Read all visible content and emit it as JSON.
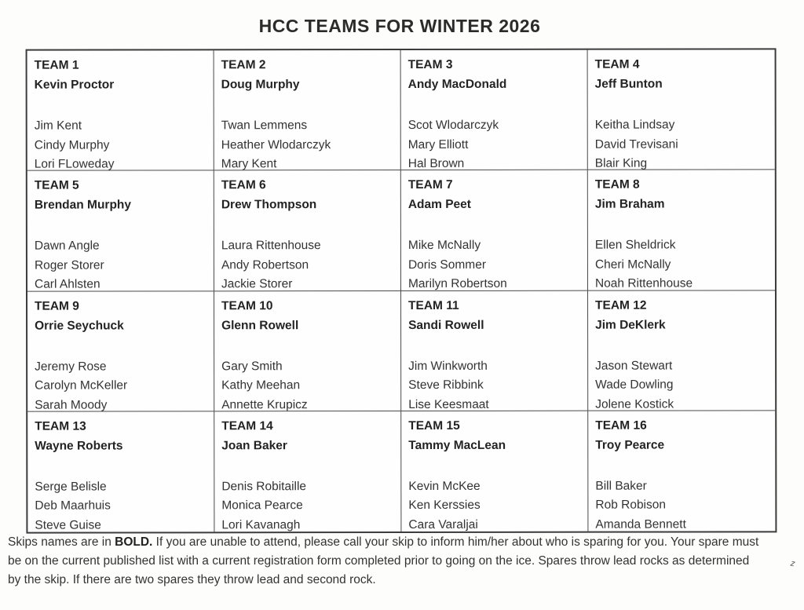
{
  "page": {
    "title": "HCC TEAMS FOR WINTER 2026"
  },
  "teams": [
    {
      "name": "TEAM 1",
      "skip": "Kevin Proctor",
      "members": [
        "Jim Kent",
        "Cindy Murphy",
        "Lori FLoweday"
      ]
    },
    {
      "name": "TEAM 2",
      "skip": "Doug Murphy",
      "members": [
        "Twan Lemmens",
        "Heather Wlodarczyk",
        "Mary Kent"
      ]
    },
    {
      "name": "TEAM 3",
      "skip": "Andy MacDonald",
      "members": [
        "Scot Wlodarczyk",
        "Mary Elliott",
        "Hal Brown"
      ]
    },
    {
      "name": "TEAM 4",
      "skip": "Jeff Bunton",
      "members": [
        "Keitha Lindsay",
        "David Trevisani",
        "Blair King"
      ]
    },
    {
      "name": "TEAM 5",
      "skip": "Brendan Murphy",
      "members": [
        "Dawn Angle",
        "Roger Storer",
        "Carl Ahlsten"
      ]
    },
    {
      "name": "TEAM 6",
      "skip": "Drew Thompson",
      "members": [
        "Laura Rittenhouse",
        "Andy Robertson",
        "Jackie Storer"
      ]
    },
    {
      "name": "TEAM 7",
      "skip": "Adam Peet",
      "members": [
        "Mike McNally",
        "Doris Sommer",
        "Marilyn Robertson"
      ]
    },
    {
      "name": "TEAM 8",
      "skip": "Jim Braham",
      "members": [
        "Ellen Sheldrick",
        "Cheri McNally",
        "Noah Rittenhouse"
      ]
    },
    {
      "name": "TEAM 9",
      "skip": "Orrie Seychuck",
      "members": [
        "Jeremy Rose",
        "Carolyn McKeller",
        "Sarah Moody"
      ]
    },
    {
      "name": "TEAM 10",
      "skip": "Glenn Rowell",
      "members": [
        "Gary Smith",
        "Kathy Meehan",
        "Annette Krupicz"
      ]
    },
    {
      "name": "TEAM 11",
      "skip": "Sandi Rowell",
      "members": [
        "Jim Winkworth",
        "Steve Ribbink",
        "Lise Keesmaat"
      ]
    },
    {
      "name": "TEAM 12",
      "skip": "Jim DeKlerk",
      "members": [
        "Jason Stewart",
        "Wade Dowling",
        "Jolene Kostick"
      ]
    },
    {
      "name": "TEAM 13",
      "skip": "Wayne Roberts",
      "members": [
        "Serge Belisle",
        "Deb Maarhuis",
        "Steve Guise"
      ]
    },
    {
      "name": "TEAM 14",
      "skip": "Joan Baker",
      "members": [
        "Denis Robitaille",
        "Monica Pearce",
        "Lori Kavanagh"
      ]
    },
    {
      "name": "TEAM 15",
      "skip": "Tammy MacLean",
      "members": [
        "Kevin McKee",
        "Ken Kerssies",
        "Cara Varaljai"
      ]
    },
    {
      "name": "TEAM 16",
      "skip": "Troy Pearce",
      "members": [
        "Bill Baker",
        "Rob Robison",
        "Amanda Bennett"
      ]
    }
  ],
  "footer": {
    "pre": "Skips names are in ",
    "bold_word": "BOLD.",
    "post": " If you are unable to attend, please call your skip to inform him/her about who is sparing for you. Your spare must be on the current published list with a current registration form completed prior to going on the ice.  Spares throw lead rocks as determined by the skip. If there are two spares they throw lead and second rock."
  }
}
